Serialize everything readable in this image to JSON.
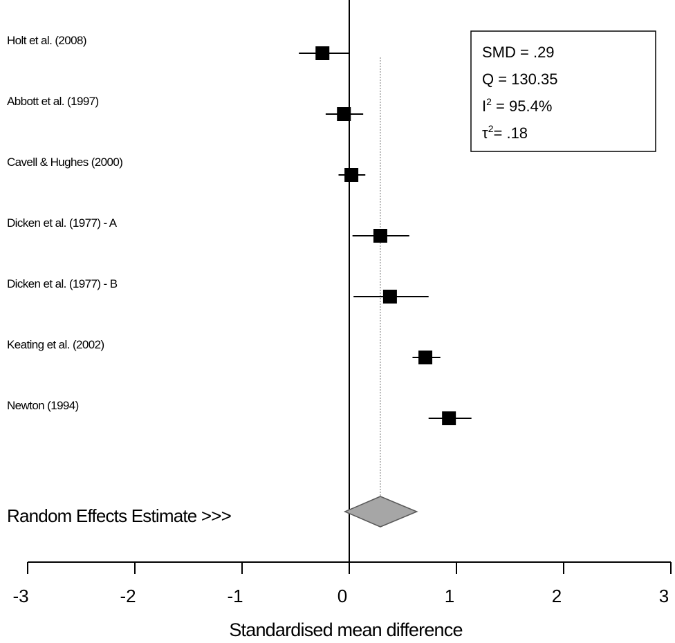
{
  "chart_data": {
    "type": "forest",
    "xlabel": "Standardised mean difference",
    "xlim": [
      -3,
      3
    ],
    "xticks": [
      "-3",
      "-2",
      "-1",
      "0",
      "1",
      "2",
      "3"
    ],
    "studies": [
      {
        "label": "Holt et al. (2008)",
        "estimate": -0.25,
        "ci": [
          -0.47,
          0.0
        ]
      },
      {
        "label": "Abbott et al. (1997)",
        "estimate": -0.05,
        "ci": [
          -0.22,
          0.13
        ]
      },
      {
        "label": "Cavell & Hughes (2000)",
        "estimate": 0.02,
        "ci": [
          -0.1,
          0.15
        ]
      },
      {
        "label": "Dicken et al. (1977) - A",
        "estimate": 0.29,
        "ci": [
          0.03,
          0.56
        ]
      },
      {
        "label": "Dicken et al. (1977) - B",
        "estimate": 0.38,
        "ci": [
          0.04,
          0.74
        ]
      },
      {
        "label": "Keating et al. (2002)",
        "estimate": 0.71,
        "ci": [
          0.59,
          0.85
        ]
      },
      {
        "label": "Newton (1994)",
        "estimate": 0.93,
        "ci": [
          0.74,
          1.14
        ]
      }
    ],
    "pooled": {
      "label": "Random Effects Estimate >>>",
      "estimate": 0.29,
      "ci": [
        -0.04,
        0.63
      ]
    },
    "reference_line": 0,
    "pooled_line": 0.29,
    "stats": {
      "smd": "SMD = .29",
      "q": "Q =  130.35",
      "i2_prefix": "I",
      "i2_sup": "2",
      "i2_value": " = 95.4%",
      "tau_prefix": "τ",
      "tau_sup": "2",
      "tau_value": "=  .18"
    }
  },
  "colors": {
    "marker": "#000000",
    "diamond_fill": "#a6a6a6",
    "diamond_stroke": "#595959",
    "pooled_line": "#8c8c8c"
  }
}
